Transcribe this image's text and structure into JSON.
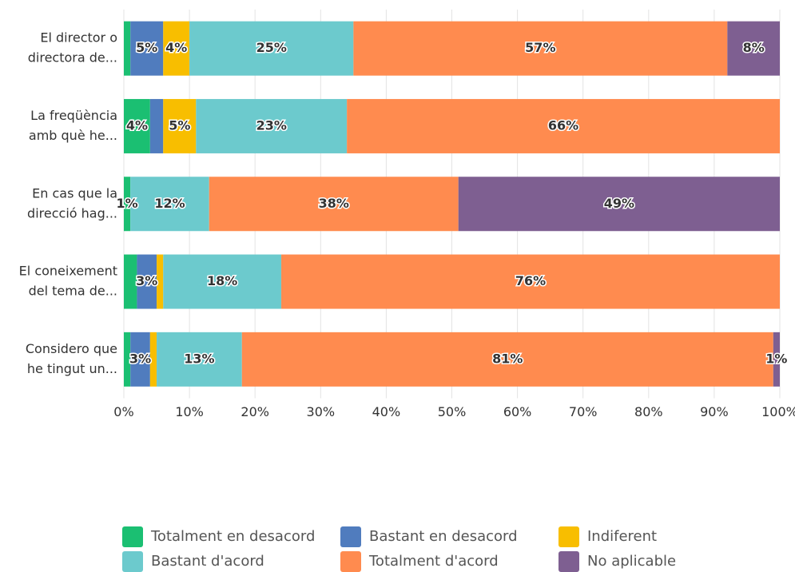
{
  "chart_data": {
    "type": "stacked_barh",
    "categories": [
      [
        "El director o",
        "directora de..."
      ],
      [
        "La freqüència",
        "amb què he..."
      ],
      [
        "En cas que la",
        "direcció hag..."
      ],
      [
        "El coneixement",
        "del tema de..."
      ],
      [
        "Considero que",
        "he tingut un..."
      ]
    ],
    "series": [
      {
        "name": "Totalment en desacord",
        "color": "#1bbf72",
        "values": [
          1,
          4,
          1,
          2,
          1
        ],
        "value_labels": [
          null,
          "4%",
          "1%",
          null,
          null
        ]
      },
      {
        "name": "Bastant en desacord",
        "color": "#507cbe",
        "values": [
          5,
          2,
          0,
          3,
          3
        ],
        "value_labels": [
          "5%",
          null,
          null,
          "3%",
          "3%"
        ]
      },
      {
        "name": "Indiferent",
        "color": "#f8be00",
        "values": [
          4,
          5,
          0,
          1,
          1
        ],
        "value_labels": [
          "4%",
          "5%",
          null,
          null,
          null
        ]
      },
      {
        "name": "Bastant d'acord",
        "color": "#6ccacd",
        "values": [
          25,
          23,
          12,
          18,
          13
        ],
        "value_labels": [
          "25%",
          "23%",
          "12%",
          "18%",
          "13%"
        ]
      },
      {
        "name": "Totalment d'acord",
        "color": "#ff8b4f",
        "values": [
          57,
          66,
          38,
          76,
          81
        ],
        "value_labels": [
          "57%",
          "66%",
          "38%",
          "76%",
          "81%"
        ]
      },
      {
        "name": "No aplicable",
        "color": "#7e5f91",
        "values": [
          8,
          0,
          49,
          0,
          1
        ],
        "value_labels": [
          "8%",
          null,
          "49%",
          null,
          "1%"
        ]
      }
    ],
    "xlim": [
      0,
      100
    ],
    "xticks": [
      {
        "value": 0,
        "label": "0%"
      },
      {
        "value": 10,
        "label": "10%"
      },
      {
        "value": 20,
        "label": "20%"
      },
      {
        "value": 30,
        "label": "30%"
      },
      {
        "value": 40,
        "label": "40%"
      },
      {
        "value": 50,
        "label": "50%"
      },
      {
        "value": 60,
        "label": "60%"
      },
      {
        "value": 70,
        "label": "70%"
      },
      {
        "value": 80,
        "label": "80%"
      },
      {
        "value": 90,
        "label": "90%"
      },
      {
        "value": 100,
        "label": "100%"
      }
    ],
    "grid": true,
    "legend": "bottom"
  }
}
